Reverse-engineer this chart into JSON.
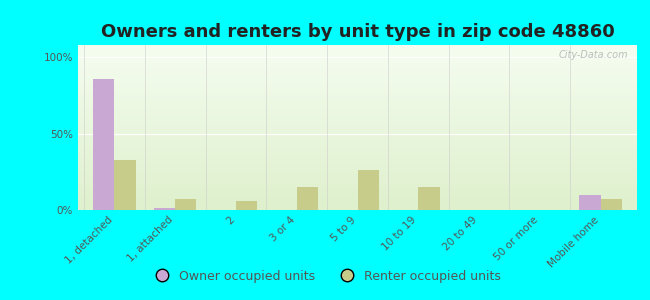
{
  "title": "Owners and renters by unit type in zip code 48860",
  "categories": [
    "1, detached",
    "1, attached",
    "2",
    "3 or 4",
    "5 to 9",
    "10 to 19",
    "20 to 49",
    "50 or more",
    "Mobile home"
  ],
  "owner_values": [
    86,
    1,
    0,
    0,
    0,
    0,
    0,
    0,
    10
  ],
  "renter_values": [
    33,
    7,
    6,
    15,
    26,
    15,
    0,
    0,
    7
  ],
  "owner_color": "#c9a8d4",
  "renter_color": "#c8cc8a",
  "background_color": "#00ffff",
  "ylabel_ticks": [
    "0%",
    "50%",
    "100%"
  ],
  "ytick_vals": [
    0,
    50,
    100
  ],
  "ylim": [
    0,
    108
  ],
  "bar_width": 0.35,
  "title_fontsize": 13,
  "tick_fontsize": 7.5,
  "legend_fontsize": 9,
  "watermark": "City-Data.com"
}
